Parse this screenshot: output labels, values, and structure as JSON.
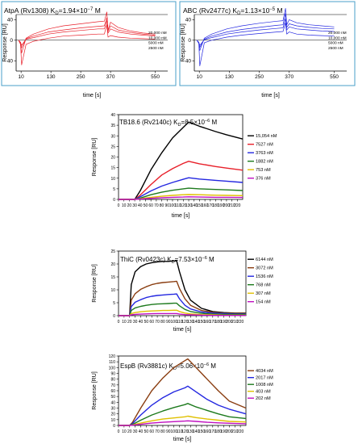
{
  "chart_data": [
    {
      "type": "line",
      "title_name": "AtpA (Rv1308) K",
      "title_sub": "D",
      "title_value": "=1.94×10",
      "title_exp": "−7",
      "title_unit": " M",
      "xlabel": "time [s]",
      "ylabel": "Response [RU]",
      "xlim": [
        -10,
        600
      ],
      "ylim": [
        -60,
        50
      ],
      "xticks": [
        10,
        130,
        250,
        370,
        550
      ],
      "yticks": [
        40,
        0,
        -40
      ],
      "ytick_labels": [
        "40",
        "0",
        "- 40"
      ],
      "color": "#e8202a",
      "series": [
        {
          "name": "20,000 nM",
          "x": [
            0,
            8,
            12,
            30,
            60,
            120,
            180,
            250,
            320,
            345,
            355,
            360,
            370,
            400,
            450,
            500,
            550
          ],
          "y": [
            0,
            -8,
            -25,
            4,
            12,
            22,
            28,
            32,
            36,
            37,
            55,
            20,
            35,
            25,
            18,
            14,
            12
          ]
        },
        {
          "name": "10,000 nM",
          "x": [
            0,
            8,
            12,
            30,
            60,
            120,
            180,
            250,
            320,
            345,
            355,
            360,
            370,
            400,
            450,
            500,
            550
          ],
          "y": [
            0,
            -5,
            -15,
            3,
            8,
            16,
            20,
            24,
            27,
            28,
            44,
            18,
            28,
            20,
            15,
            12,
            10
          ]
        },
        {
          "name": "5000 nM",
          "x": [
            0,
            8,
            12,
            30,
            60,
            120,
            180,
            250,
            320,
            345,
            355,
            360,
            370,
            400,
            450,
            500,
            550
          ],
          "y": [
            0,
            -4,
            -10,
            2,
            5,
            12,
            16,
            19,
            22,
            22,
            38,
            14,
            22,
            16,
            12,
            10,
            8
          ]
        },
        {
          "name": "2500 nM",
          "x": [
            0,
            8,
            12,
            30,
            60,
            120,
            180,
            250,
            320,
            345,
            355,
            360,
            370,
            400,
            450,
            500,
            550
          ],
          "y": [
            0,
            -8,
            -48,
            -8,
            -2,
            4,
            8,
            10,
            12,
            12,
            30,
            6,
            9,
            6,
            4,
            3,
            2
          ]
        }
      ]
    },
    {
      "type": "line",
      "title_name": "ABC (Rv2477c) K",
      "title_sub": "D",
      "title_value": "=1.13×10",
      "title_exp": "−5",
      "title_unit": " M",
      "xlabel": "time [s]",
      "ylabel": "Response [RU]",
      "xlim": [
        -10,
        600
      ],
      "ylim": [
        -60,
        50
      ],
      "xticks": [
        10,
        130,
        250,
        370,
        550
      ],
      "yticks": [
        40,
        0,
        -40
      ],
      "ytick_labels": [
        "40",
        "0",
        "- 40"
      ],
      "color": "#2327e0",
      "series": [
        {
          "name": "20,000 nM",
          "x": [
            0,
            8,
            12,
            30,
            60,
            120,
            180,
            250,
            320,
            345,
            355,
            360,
            370,
            400,
            450,
            500,
            550
          ],
          "y": [
            0,
            -6,
            -20,
            4,
            12,
            22,
            28,
            33,
            37,
            38,
            62,
            30,
            40,
            34,
            30,
            28,
            26
          ]
        },
        {
          "name": "10,000 nM",
          "x": [
            0,
            8,
            12,
            30,
            60,
            120,
            180,
            250,
            320,
            345,
            355,
            360,
            370,
            400,
            450,
            500,
            550
          ],
          "y": [
            0,
            -5,
            -14,
            2,
            8,
            16,
            21,
            25,
            29,
            30,
            52,
            25,
            32,
            28,
            25,
            23,
            22
          ]
        },
        {
          "name": "5000 nM",
          "x": [
            0,
            8,
            12,
            30,
            60,
            120,
            180,
            250,
            320,
            345,
            355,
            360,
            370,
            400,
            450,
            500,
            550
          ],
          "y": [
            0,
            -4,
            -10,
            1,
            5,
            12,
            16,
            20,
            23,
            24,
            42,
            20,
            26,
            22,
            20,
            18,
            17
          ]
        },
        {
          "name": "2500 nM",
          "x": [
            0,
            8,
            12,
            30,
            60,
            120,
            180,
            250,
            320,
            345,
            355,
            360,
            370,
            400,
            450,
            500,
            550
          ],
          "y": [
            0,
            -6,
            -50,
            -5,
            0,
            6,
            10,
            13,
            16,
            17,
            34,
            12,
            16,
            12,
            10,
            9,
            8
          ]
        }
      ]
    },
    {
      "type": "line",
      "title_name": "TB18.6 (Rv2140c) K",
      "title_sub": "D",
      "title_value": "=8.5×10",
      "title_exp": "−6",
      "title_unit": " M",
      "xlabel": "time [s]",
      "ylabel": "Response [RU]",
      "xlim": [
        0,
        230
      ],
      "ylim": [
        0,
        40
      ],
      "xticks": [
        0,
        10,
        20,
        30,
        40,
        50,
        60,
        70,
        80,
        90,
        100,
        110,
        120,
        130,
        140,
        150,
        160,
        170,
        180,
        190,
        200,
        210,
        220
      ],
      "yticks": [
        0,
        5,
        10,
        15,
        20,
        25,
        30,
        35,
        40
      ],
      "series": [
        {
          "name": "15,054 nM",
          "color": "#000000",
          "x": [
            0,
            30,
            40,
            60,
            80,
            100,
            120,
            130,
            150,
            180,
            200,
            230
          ],
          "y": [
            0,
            0,
            4,
            14,
            22,
            29,
            34,
            36.5,
            34.5,
            32,
            30.5,
            28.5
          ]
        },
        {
          "name": "7527 nM",
          "color": "#e8202a",
          "x": [
            0,
            30,
            40,
            60,
            80,
            100,
            120,
            130,
            150,
            180,
            200,
            230
          ],
          "y": [
            0,
            0,
            2,
            7,
            11.5,
            14.5,
            17,
            18,
            16.8,
            15.5,
            14.8,
            13.8
          ]
        },
        {
          "name": "3763 nM",
          "color": "#2327e0",
          "x": [
            0,
            30,
            40,
            60,
            80,
            100,
            120,
            130,
            150,
            180,
            200,
            230
          ],
          "y": [
            0,
            0,
            1.2,
            4,
            6.3,
            8,
            9.5,
            10.2,
            9.6,
            9,
            8.6,
            8
          ]
        },
        {
          "name": "1882 nM",
          "color": "#1d7a1d",
          "x": [
            0,
            30,
            40,
            60,
            80,
            100,
            120,
            130,
            150,
            180,
            200,
            230
          ],
          "y": [
            0,
            0,
            0.6,
            2.2,
            3.4,
            4.3,
            5,
            5.3,
            5,
            4.7,
            4.5,
            4.2
          ]
        },
        {
          "name": "753 nM",
          "color": "#e0c000",
          "x": [
            0,
            30,
            40,
            60,
            80,
            100,
            120,
            130,
            150,
            180,
            200,
            230
          ],
          "y": [
            0,
            0,
            0.3,
            1,
            1.5,
            1.9,
            2.2,
            2.3,
            2.2,
            2,
            1.9,
            1.8
          ]
        },
        {
          "name": "376 nM",
          "color": "#c010c0",
          "x": [
            0,
            30,
            40,
            60,
            80,
            100,
            120,
            130,
            150,
            180,
            200,
            230
          ],
          "y": [
            0,
            0,
            0.15,
            0.5,
            0.8,
            1,
            1.1,
            1.2,
            1.1,
            1,
            1,
            0.9
          ]
        }
      ]
    },
    {
      "type": "line",
      "title_name": "ThiC (Rv0423c) K",
      "title_sub": "D",
      "title_value": "=7.53×10",
      "title_exp": "−6",
      "title_unit": " M",
      "xlabel": "time [s]",
      "ylabel": "Response [RU]",
      "xlim": [
        0,
        230
      ],
      "ylim": [
        0,
        25
      ],
      "xticks": [
        0,
        10,
        20,
        30,
        40,
        50,
        60,
        70,
        80,
        90,
        100,
        110,
        120,
        130,
        140,
        150,
        160,
        170,
        180,
        190,
        200,
        210,
        220
      ],
      "yticks": [
        0,
        5,
        10,
        15,
        20,
        25
      ],
      "series": [
        {
          "name": "6144 nM",
          "color": "#000000",
          "x": [
            0,
            20,
            23,
            30,
            40,
            50,
            60,
            70,
            80,
            90,
            100,
            105,
            110,
            120,
            130,
            150,
            170,
            190,
            210,
            230
          ],
          "y": [
            0,
            0,
            12,
            17,
            19,
            20,
            20.5,
            20.8,
            21,
            21,
            21.2,
            21.2,
            17,
            10,
            6,
            2.8,
            1.6,
            1.2,
            1,
            1
          ]
        },
        {
          "name": "3072 nM",
          "color": "#8a3d10",
          "x": [
            0,
            20,
            23,
            30,
            40,
            50,
            60,
            70,
            80,
            90,
            100,
            105,
            110,
            120,
            130,
            150,
            170,
            190,
            210,
            230
          ],
          "y": [
            0,
            0,
            6,
            8.5,
            10.2,
            11.2,
            12,
            12.5,
            12.8,
            13,
            13.2,
            13.3,
            10.5,
            6.5,
            4,
            2,
            1.3,
            1,
            0.9,
            0.9
          ]
        },
        {
          "name": "1536 nM",
          "color": "#2327e0",
          "x": [
            0,
            20,
            23,
            30,
            40,
            50,
            60,
            70,
            80,
            90,
            100,
            105,
            110,
            120,
            130,
            150,
            170,
            190,
            210,
            230
          ],
          "y": [
            0,
            0,
            3.5,
            5.2,
            6.2,
            7,
            7.5,
            7.8,
            8,
            8.2,
            8.3,
            8.4,
            6.5,
            4,
            2.6,
            1.4,
            1,
            0.8,
            0.7,
            0.7
          ]
        },
        {
          "name": "768 nM",
          "color": "#1d7a1d",
          "x": [
            0,
            20,
            23,
            30,
            40,
            50,
            60,
            70,
            80,
            90,
            100,
            105,
            110,
            120,
            130,
            150,
            170,
            190,
            210,
            230
          ],
          "y": [
            0,
            0,
            2,
            3,
            3.6,
            4,
            4.3,
            4.5,
            4.6,
            4.7,
            4.8,
            4.8,
            3.8,
            2.4,
            1.6,
            0.9,
            0.6,
            0.5,
            0.5,
            0.5
          ]
        },
        {
          "name": "307 nM",
          "color": "#e0c000",
          "x": [
            0,
            20,
            23,
            30,
            40,
            50,
            60,
            70,
            80,
            90,
            100,
            105,
            110,
            120,
            130,
            150,
            170,
            190,
            210,
            230
          ],
          "y": [
            0,
            0,
            0.8,
            1.2,
            1.5,
            1.7,
            1.8,
            1.9,
            2,
            2,
            2.1,
            2.1,
            1.6,
            1,
            0.7,
            0.4,
            0.3,
            0.2,
            0.2,
            0.2
          ]
        },
        {
          "name": "154 nM",
          "color": "#c010c0",
          "x": [
            0,
            20,
            23,
            30,
            40,
            50,
            60,
            70,
            80,
            90,
            100,
            105,
            110,
            120,
            130,
            150,
            170,
            190,
            210,
            230
          ],
          "y": [
            0,
            0,
            0.3,
            0.5,
            0.6,
            0.7,
            0.75,
            0.8,
            0.8,
            0.8,
            0.8,
            0.8,
            0.6,
            0.4,
            0.3,
            0.2,
            0.1,
            0.1,
            0.1,
            0.1
          ]
        }
      ]
    },
    {
      "type": "line",
      "title_name": "EspB (Rv3881c) K",
      "title_sub": "D",
      "title_value": "=5.06×10",
      "title_exp": "−6",
      "title_unit": " M",
      "xlabel": "time [s]",
      "ylabel": "Response [RU]",
      "xlim": [
        0,
        230
      ],
      "ylim": [
        0,
        120
      ],
      "xticks": [
        0,
        10,
        20,
        30,
        40,
        50,
        60,
        70,
        80,
        90,
        100,
        110,
        120,
        130,
        140,
        150,
        160,
        170,
        180,
        190,
        200,
        210,
        220
      ],
      "yticks": [
        0,
        10,
        20,
        30,
        40,
        50,
        60,
        70,
        80,
        90,
        100,
        110,
        120
      ],
      "series": [
        {
          "name": "4034 nM",
          "color": "#8a3d10",
          "x": [
            0,
            20,
            25,
            40,
            60,
            80,
            100,
            120,
            125,
            140,
            160,
            180,
            200,
            230
          ],
          "y": [
            0,
            0,
            5,
            30,
            60,
            82,
            100,
            112,
            115,
            100,
            80,
            60,
            42,
            30
          ]
        },
        {
          "name": "2017 nM",
          "color": "#2327e0",
          "x": [
            0,
            20,
            25,
            40,
            60,
            80,
            100,
            120,
            125,
            140,
            160,
            180,
            200,
            230
          ],
          "y": [
            0,
            0,
            3,
            18,
            35,
            48,
            58,
            65,
            68,
            58,
            45,
            35,
            28,
            20
          ]
        },
        {
          "name": "1008 nM",
          "color": "#1d7a1d",
          "x": [
            0,
            20,
            25,
            40,
            60,
            80,
            100,
            120,
            125,
            140,
            160,
            180,
            200,
            230
          ],
          "y": [
            0,
            0,
            1.5,
            9,
            18,
            25,
            31,
            36,
            38,
            32,
            26,
            20,
            15,
            12
          ]
        },
        {
          "name": "403 nM",
          "color": "#e0c000",
          "x": [
            0,
            20,
            25,
            40,
            60,
            80,
            100,
            120,
            125,
            140,
            160,
            180,
            200,
            230
          ],
          "y": [
            0,
            0,
            0.8,
            4,
            8,
            11,
            13,
            15,
            16,
            13.5,
            11,
            9,
            7,
            6
          ]
        },
        {
          "name": "202 nM",
          "color": "#c010c0",
          "x": [
            0,
            20,
            25,
            40,
            60,
            80,
            100,
            120,
            125,
            140,
            160,
            180,
            200,
            230
          ],
          "y": [
            0,
            0,
            0.4,
            2,
            4,
            5.5,
            6.5,
            7.5,
            8,
            7,
            5.5,
            4.5,
            3.8,
            3
          ]
        }
      ]
    }
  ]
}
